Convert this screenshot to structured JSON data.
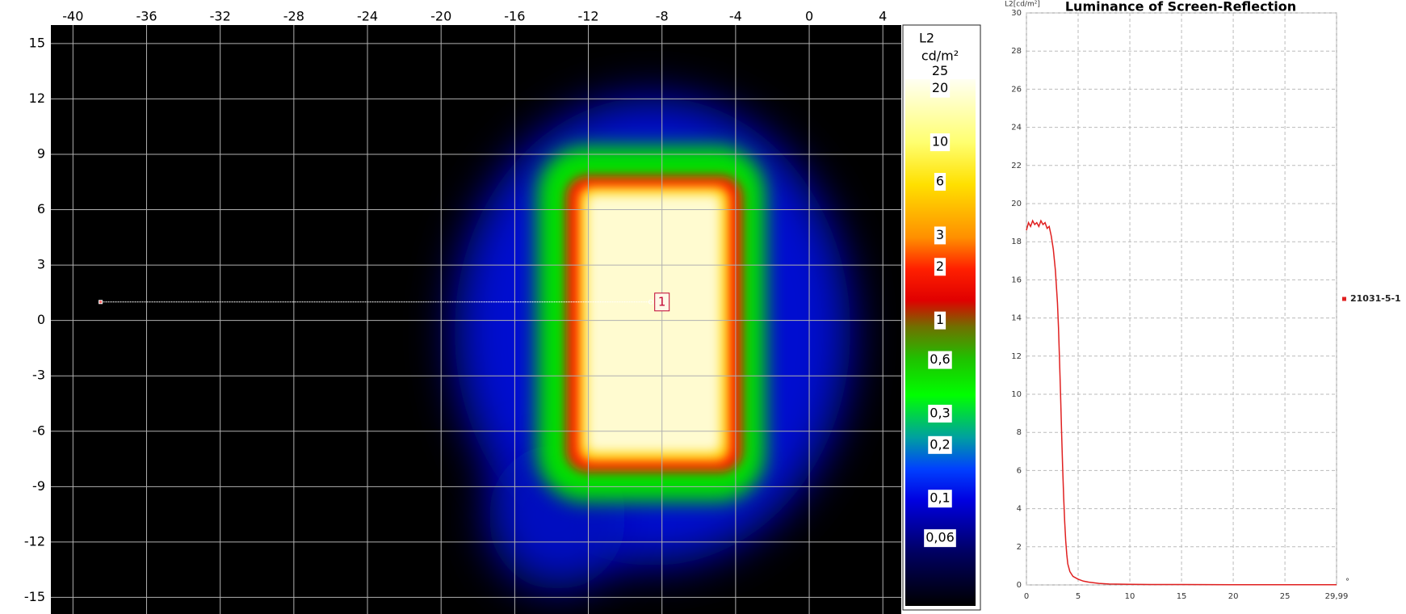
{
  "chart_data": [
    {
      "type": "heatmap",
      "xlim": [
        -41.2,
        5.0
      ],
      "ylim": [
        -15.9,
        16.0
      ],
      "xticks": [
        -40,
        -36,
        -32,
        -28,
        -24,
        -20,
        -16,
        -12,
        -8,
        -4,
        0,
        4
      ],
      "yticks": [
        15,
        12,
        9,
        6,
        3,
        0,
        -3,
        -6,
        -9,
        -12,
        -15
      ],
      "grid": true,
      "profile": {
        "x": [
          -38.5,
          -8.6
        ],
        "y": [
          1,
          1
        ],
        "color": "#ffffff"
      },
      "annotations": [
        {
          "text": "1",
          "x": -8,
          "y": 1
        }
      ],
      "colorbar": {
        "title": "L2",
        "unit": "cd/m²",
        "log": true,
        "lim": [
          0.025,
          22.6
        ],
        "ticks": [
          25,
          20,
          10,
          6,
          3,
          2,
          1,
          {
            "value": 0.6,
            "label": "0,6"
          },
          {
            "value": 0.3,
            "label": "0,3"
          },
          {
            "value": 0.2,
            "label": "0,2"
          },
          {
            "value": 0.1,
            "label": "0,1"
          },
          {
            "value": 0.06,
            "label": "0,06"
          }
        ]
      }
    },
    {
      "type": "line",
      "title": "Luminance of Screen-Reflection",
      "y_label": "L2[cd/m²]",
      "x_unit": "°",
      "xlim": [
        0,
        29.99
      ],
      "ylim": [
        0,
        30
      ],
      "xticks": [
        0,
        5,
        10,
        15,
        20,
        25,
        {
          "value": 29.99,
          "label": "29,99"
        }
      ],
      "yticks": [
        0,
        2,
        4,
        6,
        8,
        10,
        12,
        14,
        16,
        18,
        20,
        22,
        24,
        26,
        28,
        30
      ],
      "grid": true,
      "x": [
        0,
        0.2,
        0.4,
        0.6,
        0.8,
        1.0,
        1.2,
        1.4,
        1.6,
        1.8,
        2.0,
        2.2,
        2.4,
        2.6,
        2.8,
        3.0,
        3.1,
        3.2,
        3.3,
        3.4,
        3.5,
        3.6,
        3.7,
        3.8,
        3.9,
        4.0,
        4.2,
        4.5,
        5.0,
        5.5,
        6,
        7,
        8,
        10,
        12,
        15,
        20,
        25,
        29.99
      ],
      "series": [
        {
          "name": "21031-5-1",
          "color": "#e02020",
          "values": [
            18.6,
            19.0,
            18.8,
            19.1,
            18.9,
            19.0,
            18.8,
            19.1,
            18.9,
            19.0,
            18.7,
            18.8,
            18.3,
            17.6,
            16.5,
            14.8,
            13.5,
            11.8,
            10.0,
            8.0,
            6.2,
            4.6,
            3.3,
            2.3,
            1.6,
            1.1,
            0.7,
            0.45,
            0.3,
            0.2,
            0.15,
            0.08,
            0.05,
            0.03,
            0.02,
            0.02,
            0.01,
            0.01,
            0.01
          ]
        }
      ]
    }
  ]
}
